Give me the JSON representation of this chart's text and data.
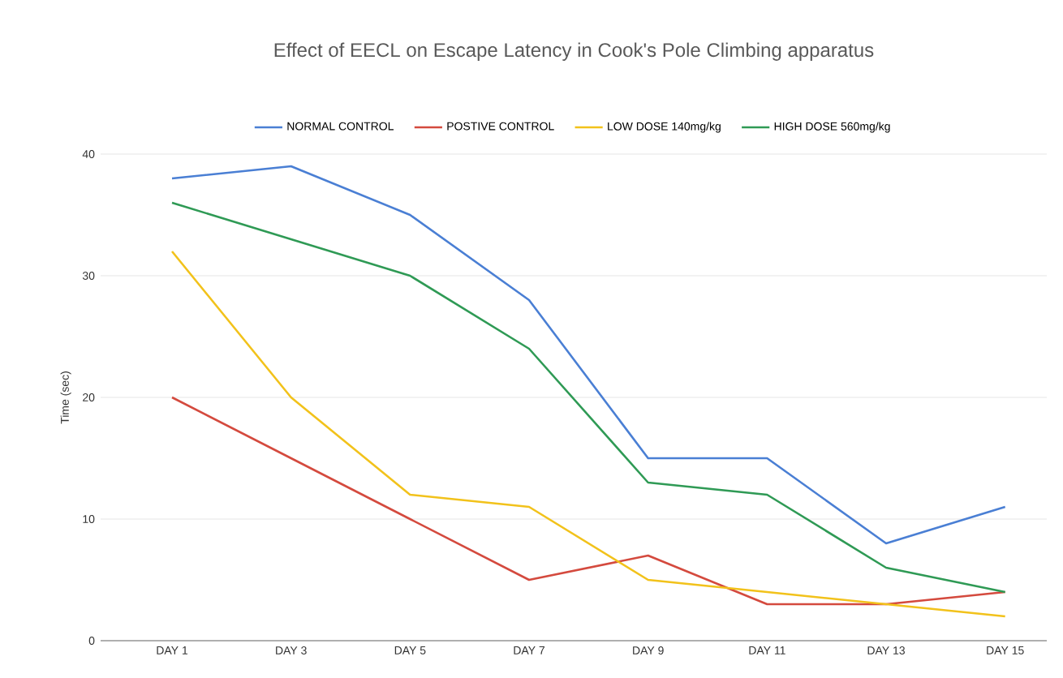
{
  "chart_data": {
    "type": "line",
    "title": "Effect of EECL on Escape Latency in Cook's Pole Climbing apparatus",
    "ylabel": "Time (sec)",
    "categories": [
      "DAY 1",
      "DAY 3",
      "DAY 5",
      "DAY 7",
      "DAY 9",
      "DAY 11",
      "DAY 13",
      "DAY 15"
    ],
    "series": [
      {
        "name": "NORMAL CONTROL",
        "color": "#4a7fd4",
        "values": [
          38,
          39,
          35,
          28,
          15,
          15,
          8,
          11
        ]
      },
      {
        "name": "POSTIVE CONTROL",
        "color": "#d44a3e",
        "values": [
          20,
          15,
          10,
          5,
          7,
          3,
          3,
          4
        ]
      },
      {
        "name": "LOW DOSE 140mg/kg",
        "color": "#f2c21b",
        "values": [
          32,
          20,
          12,
          11,
          5,
          4,
          3,
          2
        ]
      },
      {
        "name": "HIGH DOSE 560mg/kg",
        "color": "#2f9a55",
        "values": [
          36,
          33,
          30,
          24,
          13,
          12,
          6,
          4
        ]
      }
    ],
    "ylim": [
      0,
      40
    ],
    "yticks": [
      0,
      10,
      20,
      30,
      40
    ],
    "grid": "y",
    "legend": "top",
    "marker": "none",
    "line_style": "solid"
  }
}
